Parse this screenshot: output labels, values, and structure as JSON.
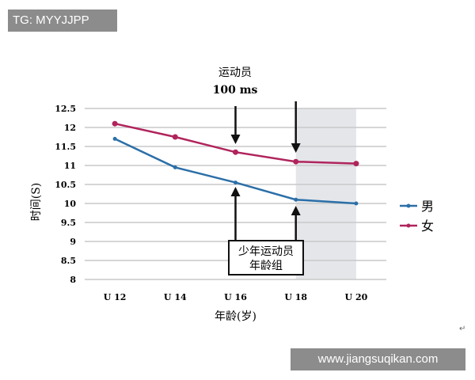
{
  "watermark_top": "TG: MYYJJPP",
  "watermark_bottom": "www.jiangsuqikan.com",
  "return_mark": "↵",
  "chart_data": {
    "type": "line",
    "categories": [
      "U 12",
      "U 14",
      "U 16",
      "U 18",
      "U 20"
    ],
    "series": [
      {
        "name": "男",
        "color": "#2b6fa8",
        "values": [
          11.7,
          10.95,
          10.55,
          10.1,
          10.0
        ]
      },
      {
        "name": "女",
        "color": "#b0245c",
        "values": [
          12.1,
          11.75,
          11.35,
          11.1,
          11.05
        ]
      }
    ],
    "ylabel": "时间(S)",
    "xlabel": "年龄(岁)",
    "ylim": [
      8,
      12.5
    ],
    "yticks": [
      "12.5",
      "12",
      "11.5",
      "11",
      "10.5",
      "10",
      "9.5",
      "9",
      "8.5",
      "8"
    ],
    "grid": true,
    "legend": "right",
    "shaded_range": [
      "U 18",
      "U 20"
    ],
    "annotations": {
      "top_line1": "运动员",
      "top_line2": "100 ms",
      "box_line1": "少年运动员",
      "box_line2": "年龄组",
      "arrows_at": [
        "U 16",
        "U 18"
      ]
    }
  }
}
